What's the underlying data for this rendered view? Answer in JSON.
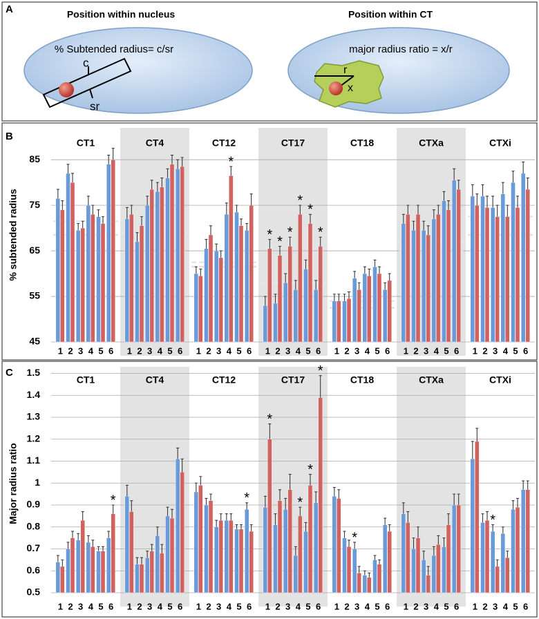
{
  "panel_labels": [
    "A",
    "B",
    "C"
  ],
  "diagram": {
    "left": {
      "title": "Position within nucleus",
      "formula": "% Subtended radius= c/sr",
      "labels": [
        "c",
        "sr"
      ]
    },
    "right": {
      "title": "Position within CT",
      "formula": "major radius ratio = x/r",
      "labels": [
        "r",
        "x"
      ]
    }
  },
  "chart_data": [
    {
      "type": "bar",
      "ylabel": "% subtended radius",
      "ylim": [
        45,
        92
      ],
      "yticks": [
        45,
        55,
        65,
        75,
        85
      ],
      "grid": true,
      "categories": [
        "1",
        "2",
        "3",
        "4",
        "5",
        "6"
      ],
      "subplots": [
        {
          "title": "CT1",
          "shaded": false,
          "series": [
            {
              "color": "#6a9bd8",
              "values": [
                76.5,
                82,
                69.5,
                75,
                72.5,
                84
              ],
              "errors": [
                2,
                2,
                1.5,
                2,
                1.5,
                2
              ]
            },
            {
              "color": "#d0625f",
              "values": [
                74,
                80,
                70,
                73,
                71,
                85
              ],
              "errors": [
                2,
                2,
                1.5,
                2,
                1.5,
                2.5
              ]
            }
          ],
          "reference_lines": [
            {
              "value": 71.5,
              "color": "#dfe8f5"
            },
            {
              "value": 68.5,
              "color": "#f3d9d8"
            }
          ]
        },
        {
          "title": "CT4",
          "shaded": true,
          "series": [
            {
              "color": "#6a9bd8",
              "values": [
                72,
                67,
                75,
                78,
                81,
                83
              ],
              "errors": [
                2.5,
                2,
                2,
                2,
                2,
                2
              ]
            },
            {
              "color": "#d0625f",
              "values": [
                73,
                70.5,
                78.5,
                79,
                84,
                83.5
              ],
              "errors": [
                2,
                2,
                2,
                2,
                2,
                2
              ]
            }
          ],
          "reference_lines": [
            {
              "value": 69,
              "color": "#dfe8f5"
            },
            {
              "value": 65.5,
              "color": "#f3d9d8"
            }
          ]
        },
        {
          "title": "CT12",
          "shaded": false,
          "series": [
            {
              "color": "#6a9bd8",
              "values": [
                60,
                65.5,
                65,
                73,
                73.5,
                69.5
              ],
              "errors": [
                1.5,
                2,
                1.5,
                2.5,
                1.5,
                1.5
              ],
              "significance": [
                null,
                null,
                null,
                null,
                null,
                null
              ]
            },
            {
              "color": "#d0625f",
              "values": [
                59.5,
                68.5,
                63.5,
                81.5,
                70.5,
                75
              ],
              "errors": [
                1.5,
                2,
                1.5,
                2,
                1.5,
                2.5
              ],
              "significance": [
                null,
                null,
                null,
                "*",
                null,
                null
              ]
            }
          ],
          "reference_lines": [
            {
              "value": 62.5,
              "color": "#dfe8f5"
            },
            {
              "value": 61.5,
              "color": "#f3d9d8"
            }
          ]
        },
        {
          "title": "CT17",
          "shaded": true,
          "series": [
            {
              "color": "#6a9bd8",
              "values": [
                53,
                53.5,
                58,
                56.5,
                61,
                56.5
              ],
              "errors": [
                2,
                2,
                2,
                2,
                2,
                2
              ]
            },
            {
              "color": "#d0625f",
              "values": [
                65.5,
                64,
                66,
                73,
                71,
                66
              ],
              "errors": [
                2,
                2,
                2,
                2,
                2,
                2
              ],
              "significance": [
                "*",
                "*",
                "*",
                "*",
                "*",
                "*"
              ]
            }
          ],
          "reference_lines": [
            {
              "value": 58,
              "color": "#dfe8f5"
            },
            {
              "value": 46.5,
              "color": "#f3d9d8"
            }
          ]
        },
        {
          "title": "CT18",
          "shaded": false,
          "series": [
            {
              "color": "#6a9bd8",
              "values": [
                54,
                54,
                59,
                60,
                61.5,
                56.5
              ],
              "errors": [
                1.5,
                1.5,
                1.5,
                1.5,
                1.5,
                1.5
              ]
            },
            {
              "color": "#d0625f",
              "values": [
                54,
                54.5,
                56.5,
                59.5,
                60,
                58.5
              ],
              "errors": [
                1.5,
                1.5,
                1.5,
                1.5,
                1.5,
                1.5
              ]
            }
          ],
          "reference_lines": [
            {
              "value": 54,
              "color": "#dfe8f5"
            },
            {
              "value": 52.5,
              "color": "#f3d9d8"
            }
          ]
        },
        {
          "title": "CTXa",
          "shaded": true,
          "series": [
            {
              "color": "#6a9bd8",
              "values": [
                71,
                69.5,
                69.5,
                72,
                76,
                80.5
              ],
              "errors": [
                2,
                2,
                2,
                2,
                2,
                2.5
              ]
            },
            {
              "color": "#d0625f",
              "values": [
                73,
                73,
                68.5,
                73,
                74,
                78.5
              ],
              "errors": [
                2,
                2,
                2,
                2,
                2,
                2
              ]
            }
          ],
          "reference_lines": [
            {
              "value": 67,
              "color": "#dfe8f5"
            },
            {
              "value": 65,
              "color": "#f3d9d8"
            }
          ]
        },
        {
          "title": "CTXi",
          "shaded": false,
          "series": [
            {
              "color": "#6a9bd8",
              "values": [
                77,
                77,
                74.5,
                77.5,
                80,
                82
              ],
              "errors": [
                2.5,
                2.5,
                2.5,
                2.5,
                2.5,
                2.5
              ]
            },
            {
              "color": "#d0625f",
              "values": [
                75,
                74.5,
                72.5,
                72.5,
                74.5,
                78.5
              ],
              "errors": [
                2.5,
                2.5,
                2.5,
                2.5,
                2.5,
                2.5
              ]
            }
          ],
          "reference_lines": [
            {
              "value": 72.5,
              "color": "#dfe8f5"
            },
            {
              "value": 68.5,
              "color": "#f3d9d8"
            }
          ]
        }
      ]
    },
    {
      "type": "bar",
      "ylabel": "Major radius ratio",
      "ylim": [
        0.5,
        1.53
      ],
      "yticks": [
        0.5,
        0.6,
        0.7,
        0.8,
        0.9,
        1,
        1.1,
        1.2,
        1.3,
        1.4,
        1.5
      ],
      "grid": true,
      "categories": [
        "1",
        "2",
        "3",
        "4",
        "5",
        "6"
      ],
      "subplots": [
        {
          "title": "CT1",
          "shaded": false,
          "series": [
            {
              "color": "#6a9bd8",
              "values": [
                0.64,
                0.7,
                0.74,
                0.73,
                0.69,
                0.75
              ],
              "errors": [
                0.03,
                0.03,
                0.03,
                0.03,
                0.02,
                0.03
              ]
            },
            {
              "color": "#d0625f",
              "values": [
                0.62,
                0.75,
                0.83,
                0.71,
                0.69,
                0.86
              ],
              "errors": [
                0.03,
                0.03,
                0.04,
                0.03,
                0.02,
                0.04
              ],
              "significance": [
                null,
                null,
                null,
                null,
                null,
                "*"
              ]
            }
          ]
        },
        {
          "title": "CT4",
          "shaded": true,
          "series": [
            {
              "color": "#6a9bd8",
              "values": [
                0.94,
                0.63,
                0.66,
                0.76,
                0.85,
                1.11
              ],
              "errors": [
                0.05,
                0.03,
                0.03,
                0.04,
                0.04,
                0.05
              ]
            },
            {
              "color": "#d0625f",
              "values": [
                0.87,
                0.63,
                0.69,
                0.68,
                0.84,
                1.05
              ],
              "errors": [
                0.05,
                0.03,
                0.03,
                0.04,
                0.04,
                0.06
              ]
            }
          ]
        },
        {
          "title": "CT12",
          "shaded": false,
          "series": [
            {
              "color": "#6a9bd8",
              "values": [
                0.96,
                0.9,
                0.8,
                0.83,
                0.79,
                0.88
              ],
              "errors": [
                0.04,
                0.03,
                0.03,
                0.03,
                0.02,
                0.03
              ],
              "significance": [
                null,
                null,
                null,
                null,
                null,
                "*"
              ]
            },
            {
              "color": "#d0625f",
              "values": [
                0.99,
                0.92,
                0.83,
                0.83,
                0.79,
                0.78
              ],
              "errors": [
                0.04,
                0.03,
                0.03,
                0.03,
                0.02,
                0.03
              ]
            }
          ]
        },
        {
          "title": "CT17",
          "shaded": true,
          "series": [
            {
              "color": "#6a9bd8",
              "values": [
                0.89,
                0.81,
                0.88,
                0.67,
                0.78,
                0.91
              ],
              "errors": [
                0.05,
                0.05,
                0.05,
                0.04,
                0.04,
                0.05
              ]
            },
            {
              "color": "#d0625f",
              "values": [
                1.2,
                0.92,
                0.97,
                0.85,
                0.99,
                1.39
              ],
              "errors": [
                0.07,
                0.05,
                0.07,
                0.04,
                0.05,
                0.1
              ],
              "significance": [
                "*",
                null,
                null,
                "*",
                "*",
                "*"
              ]
            }
          ]
        },
        {
          "title": "CT18",
          "shaded": false,
          "series": [
            {
              "color": "#6a9bd8",
              "values": [
                0.94,
                0.75,
                0.7,
                0.58,
                0.65,
                0.81
              ],
              "errors": [
                0.04,
                0.03,
                0.03,
                0.02,
                0.02,
                0.03
              ],
              "significance": [
                null,
                null,
                "*",
                null,
                null,
                null
              ]
            },
            {
              "color": "#d0625f",
              "values": [
                0.93,
                0.71,
                0.59,
                0.57,
                0.63,
                0.78
              ],
              "errors": [
                0.04,
                0.03,
                0.03,
                0.02,
                0.02,
                0.03
              ]
            }
          ]
        },
        {
          "title": "CTXa",
          "shaded": true,
          "series": [
            {
              "color": "#6a9bd8",
              "values": [
                0.86,
                0.7,
                0.65,
                0.67,
                0.71,
                0.9
              ],
              "errors": [
                0.05,
                0.05,
                0.04,
                0.04,
                0.04,
                0.05
              ]
            },
            {
              "color": "#d0625f",
              "values": [
                0.82,
                0.75,
                0.58,
                0.72,
                0.81,
                0.9
              ],
              "errors": [
                0.05,
                0.05,
                0.04,
                0.04,
                0.05,
                0.05
              ]
            }
          ]
        },
        {
          "title": "CTXi",
          "shaded": false,
          "series": [
            {
              "color": "#6a9bd8",
              "values": [
                1.11,
                0.82,
                0.78,
                0.77,
                0.88,
                0.97
              ],
              "errors": [
                0.08,
                0.04,
                0.03,
                0.03,
                0.04,
                0.04
              ],
              "significance": [
                null,
                null,
                "*",
                null,
                null,
                null
              ]
            },
            {
              "color": "#d0625f",
              "values": [
                1.19,
                0.83,
                0.62,
                0.66,
                0.89,
                0.97
              ],
              "errors": [
                0.06,
                0.04,
                0.03,
                0.03,
                0.04,
                0.04
              ]
            }
          ]
        }
      ]
    }
  ]
}
